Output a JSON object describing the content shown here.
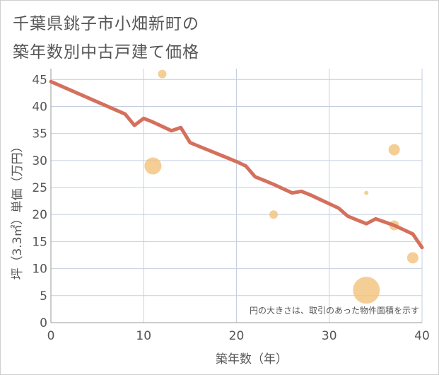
{
  "title_line1": "千葉県銚子市小畑新町の",
  "title_line2": "築年数別中古戸建て価格",
  "chart_data": {
    "type": "line+scatter",
    "title": "千葉県銚子市小畑新町の築年数別中古戸建て価格",
    "xlabel": "築年数（年）",
    "ylabel": "坪（3.3㎡）単価（万円）",
    "xlim": [
      0,
      40
    ],
    "ylim": [
      0,
      47
    ],
    "x_ticks": [
      0,
      10,
      20,
      30,
      40
    ],
    "y_ticks": [
      0,
      5,
      10,
      15,
      20,
      25,
      30,
      35,
      40,
      45
    ],
    "grid": true,
    "note": "円の大きさは、取引のあった物件面積を示す",
    "line": {
      "color": "#d4705c",
      "points": [
        [
          0,
          44.6
        ],
        [
          8,
          38.6
        ],
        [
          9,
          36.5
        ],
        [
          10,
          37.8
        ],
        [
          11,
          37.1
        ],
        [
          12,
          36.3
        ],
        [
          13,
          35.5
        ],
        [
          14,
          36.1
        ],
        [
          15,
          33.3
        ],
        [
          16,
          32.6
        ],
        [
          17,
          31.9
        ],
        [
          18,
          31.2
        ],
        [
          19,
          30.5
        ],
        [
          20,
          29.8
        ],
        [
          21,
          29.0
        ],
        [
          22,
          27.0
        ],
        [
          23,
          26.3
        ],
        [
          24,
          25.6
        ],
        [
          25,
          24.8
        ],
        [
          26,
          24.0
        ],
        [
          27,
          24.3
        ],
        [
          28,
          23.6
        ],
        [
          29,
          22.8
        ],
        [
          30,
          22.0
        ],
        [
          31,
          21.2
        ],
        [
          32,
          19.7
        ],
        [
          33,
          19.0
        ],
        [
          34,
          18.3
        ],
        [
          35,
          19.2
        ],
        [
          36,
          18.6
        ],
        [
          37,
          18.0
        ],
        [
          38,
          17.2
        ],
        [
          39,
          16.4
        ],
        [
          40,
          13.9
        ]
      ]
    },
    "bubbles": {
      "color": "#f2c27a",
      "points": [
        {
          "x": 12,
          "y": 46,
          "size": 6
        },
        {
          "x": 11,
          "y": 29,
          "size": 12
        },
        {
          "x": 24,
          "y": 20,
          "size": 6
        },
        {
          "x": 34,
          "y": 24,
          "size": 3
        },
        {
          "x": 37,
          "y": 32,
          "size": 8
        },
        {
          "x": 37,
          "y": 18,
          "size": 7
        },
        {
          "x": 39,
          "y": 12,
          "size": 8
        },
        {
          "x": 34,
          "y": 6,
          "size": 19
        }
      ]
    }
  }
}
